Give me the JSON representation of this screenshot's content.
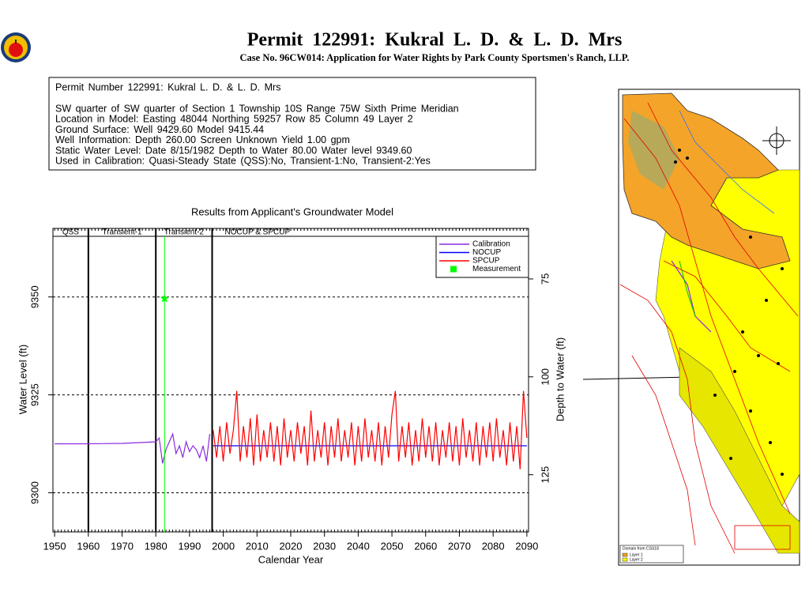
{
  "header": {
    "title": "Permit 122991: Kukral L. D. & L. D. Mrs",
    "subtitle": "Case No. 96CW014: Application for Water Rights by Park County Sportsmen's Ranch, LLP."
  },
  "info": {
    "lines": [
      "Permit Number 122991: Kukral L. D. & L. D. Mrs",
      "SW quarter of SW quarter of Section 1 Township 10S Range 75W Sixth Prime Meridian",
      "Location in Model: Easting 48044 Northing 59257 Row 85 Column 49 Layer 2",
      "Ground Surface: Well 9429.60 Model 9415.44",
      "Well Information: Depth 260.00 Screen Unknown Yield 1.00 gpm",
      "Static Water Level: Date 8/15/1982 Depth to Water 80.00 Water level 9349.60",
      "Used in Calibration: Quasi-Steady State (QSS):No, Transient-1:No, Transient-2:Yes"
    ]
  },
  "chart_data": {
    "type": "line",
    "title": "Results from Applicant's Groundwater Model",
    "x_label": "Calendar Year",
    "y_label": "Water Level (ft)",
    "y2_label": "Depth to Water (ft)",
    "xlim": [
      1949.5,
      2090.5
    ],
    "xticks": [
      1950,
      1960,
      1970,
      1980,
      1990,
      2000,
      2010,
      2020,
      2030,
      2040,
      2050,
      2060,
      2070,
      2080,
      2090
    ],
    "ylim": [
      9290,
      9367.5
    ],
    "yticks": [
      9300,
      9325,
      9350
    ],
    "y2lim": [
      139.6,
      62.1
    ],
    "y2ticks": [
      75,
      100,
      125
    ],
    "grid": true,
    "legend": "upper right",
    "period_labels": [
      "QSS",
      "Transient-1",
      "Transient-2",
      "NOCUP & SPCUP"
    ],
    "period_bounds": [
      1960,
      1980,
      1996.7
    ],
    "series": [
      {
        "name": "Calibration",
        "color": "#8a2be2",
        "x": [
          1950,
          1960,
          1970,
          1975,
          1980,
          1981,
          1982,
          1983,
          1984,
          1985,
          1986,
          1987,
          1988,
          1989,
          1990,
          1991,
          1992,
          1993,
          1994,
          1995,
          1996
        ],
        "values": [
          9312.5,
          9312.5,
          9312.6,
          9312.8,
          9313,
          9314,
          9307.5,
          9311,
          9313,
          9315,
          9310,
          9312,
          9309,
          9313,
          9310.5,
          9312,
          9311,
          9309,
          9312,
          9308,
          9315
        ]
      },
      {
        "name": "NOCUP",
        "color": "#0000ff",
        "x": [
          1997,
          2010,
          2030,
          2050,
          2070,
          2090
        ],
        "values": [
          9312,
          9312,
          9312,
          9312,
          9312,
          9312
        ]
      },
      {
        "name": "SPCUP",
        "color": "#ff0000",
        "x": [
          1997,
          1998,
          1999,
          2000,
          2001,
          2002,
          2003,
          2004,
          2005,
          2006,
          2007,
          2008,
          2009,
          2010,
          2011,
          2012,
          2013,
          2014,
          2015,
          2016,
          2017,
          2018,
          2019,
          2020,
          2021,
          2022,
          2023,
          2024,
          2025,
          2026,
          2027,
          2028,
          2029,
          2030,
          2031,
          2032,
          2033,
          2034,
          2035,
          2036,
          2037,
          2038,
          2039,
          2040,
          2041,
          2042,
          2043,
          2044,
          2045,
          2046,
          2047,
          2048,
          2049,
          2050,
          2051,
          2052,
          2053,
          2054,
          2055,
          2056,
          2057,
          2058,
          2059,
          2060,
          2061,
          2062,
          2063,
          2064,
          2065,
          2066,
          2067,
          2068,
          2069,
          2070,
          2071,
          2072,
          2073,
          2074,
          2075,
          2076,
          2077,
          2078,
          2079,
          2080,
          2081,
          2082,
          2083,
          2084,
          2085,
          2086,
          2087,
          2088,
          2089,
          2090
        ],
        "values": [
          9316,
          9309,
          9317,
          9308,
          9318,
          9310,
          9316,
          9326,
          9308,
          9317,
          9309,
          9319,
          9307,
          9320,
          9308,
          9316,
          9309,
          9318,
          9308,
          9317,
          9307,
          9319,
          9309,
          9316,
          9308,
          9318,
          9310,
          9317,
          9307,
          9321,
          9308,
          9316,
          9309,
          9318,
          9307,
          9317,
          9309,
          9319,
          9308,
          9316,
          9309,
          9318,
          9307,
          9317,
          9308,
          9319,
          9309,
          9316,
          9308,
          9318,
          9307,
          9317,
          9309,
          9320,
          9326,
          9308,
          9317,
          9309,
          9318,
          9307,
          9316,
          9308,
          9319,
          9309,
          9317,
          9308,
          9318,
          9307,
          9316,
          9309,
          9318,
          9308,
          9317,
          9307,
          9319,
          9309,
          9316,
          9308,
          9318,
          9307,
          9317,
          9309,
          9318,
          9308,
          9319,
          9309,
          9316,
          9307,
          9318,
          9308,
          9317,
          9306,
          9326,
          9314
        ]
      },
      {
        "name": "Measurement",
        "color": "#00ff00",
        "marker": "star",
        "x": [
          1982.6
        ],
        "values": [
          9349.6
        ]
      }
    ]
  },
  "map": {
    "legend_title": "Domain from CSS18",
    "legend_items": [
      "Layer 1",
      "Layer 2"
    ]
  }
}
